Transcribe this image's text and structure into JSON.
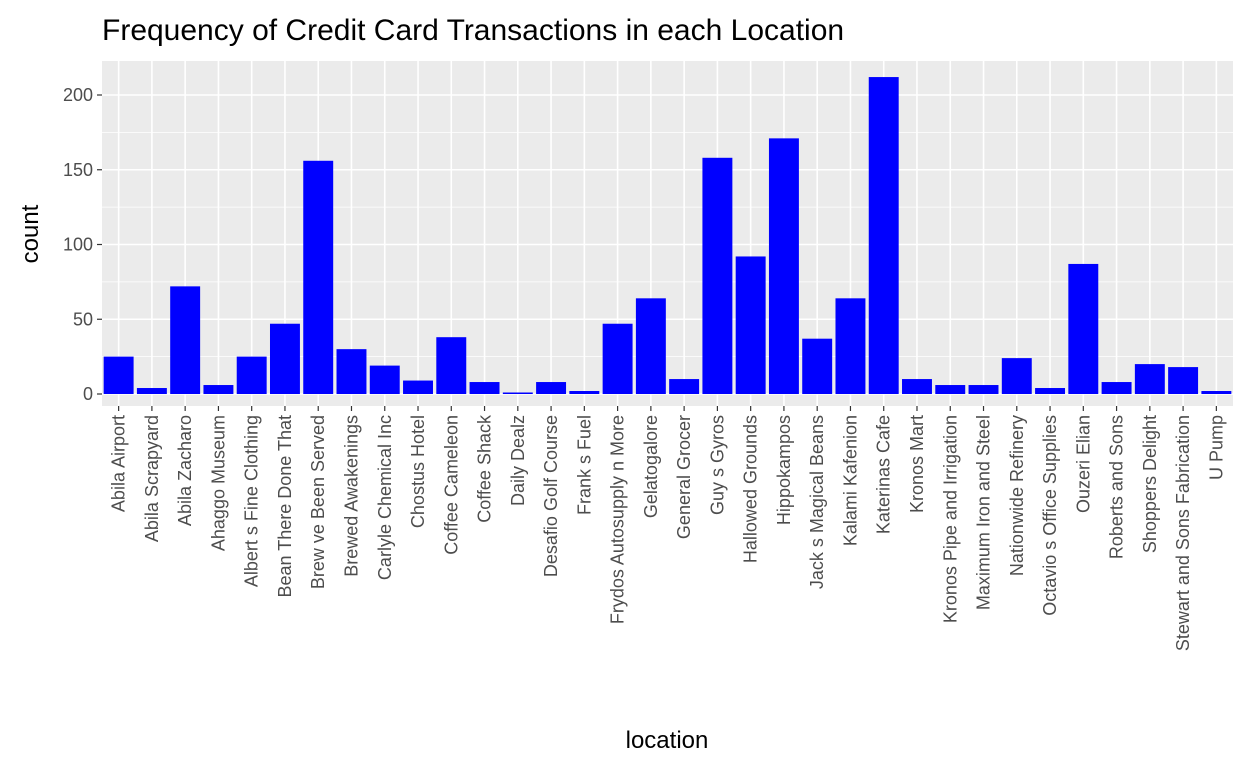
{
  "chart_data": {
    "type": "bar",
    "title": "Frequency of Credit Card Transactions in each Location",
    "xlabel": "location",
    "ylabel": "count",
    "ylim": [
      0,
      222
    ],
    "yticks": [
      0,
      50,
      100,
      150,
      200
    ],
    "grid": true,
    "bar_color": "#0000ff",
    "panel_color": "#ebebeb",
    "grid_color": "#ffffff",
    "categories": [
      "Abila Airport",
      "Abila Scrapyard",
      "Abila Zacharo",
      "Ahaggo Museum",
      "Albert s Fine Clothing",
      "Bean There Done That",
      "Brew ve Been Served",
      "Brewed Awakenings",
      "Carlyle Chemical Inc",
      "Chostus Hotel",
      "Coffee Cameleon",
      "Coffee Shack",
      "Daily Dealz",
      "Desafio Golf Course",
      "Frank s Fuel",
      "Frydos Autosupply n  More",
      "Gelatogalore",
      "General Grocer",
      "Guy s Gyros",
      "Hallowed Grounds",
      "Hippokampos",
      "Jack s Magical Beans",
      "Kalami Kafenion",
      "Katerinas Cafe",
      "Kronos Mart",
      "Kronos Pipe and Irrigation",
      "Maximum Iron and Steel",
      "Nationwide Refinery",
      "Octavio s Office Supplies",
      "Ouzeri Elian",
      "Roberts and Sons",
      "Shoppers  Delight",
      "Stewart and Sons Fabrication",
      "U Pump"
    ],
    "values": [
      25,
      4,
      72,
      6,
      25,
      47,
      156,
      30,
      19,
      9,
      38,
      8,
      1,
      8,
      2,
      47,
      64,
      10,
      158,
      92,
      171,
      37,
      64,
      212,
      10,
      6,
      6,
      24,
      4,
      87,
      8,
      20,
      18,
      2
    ]
  }
}
